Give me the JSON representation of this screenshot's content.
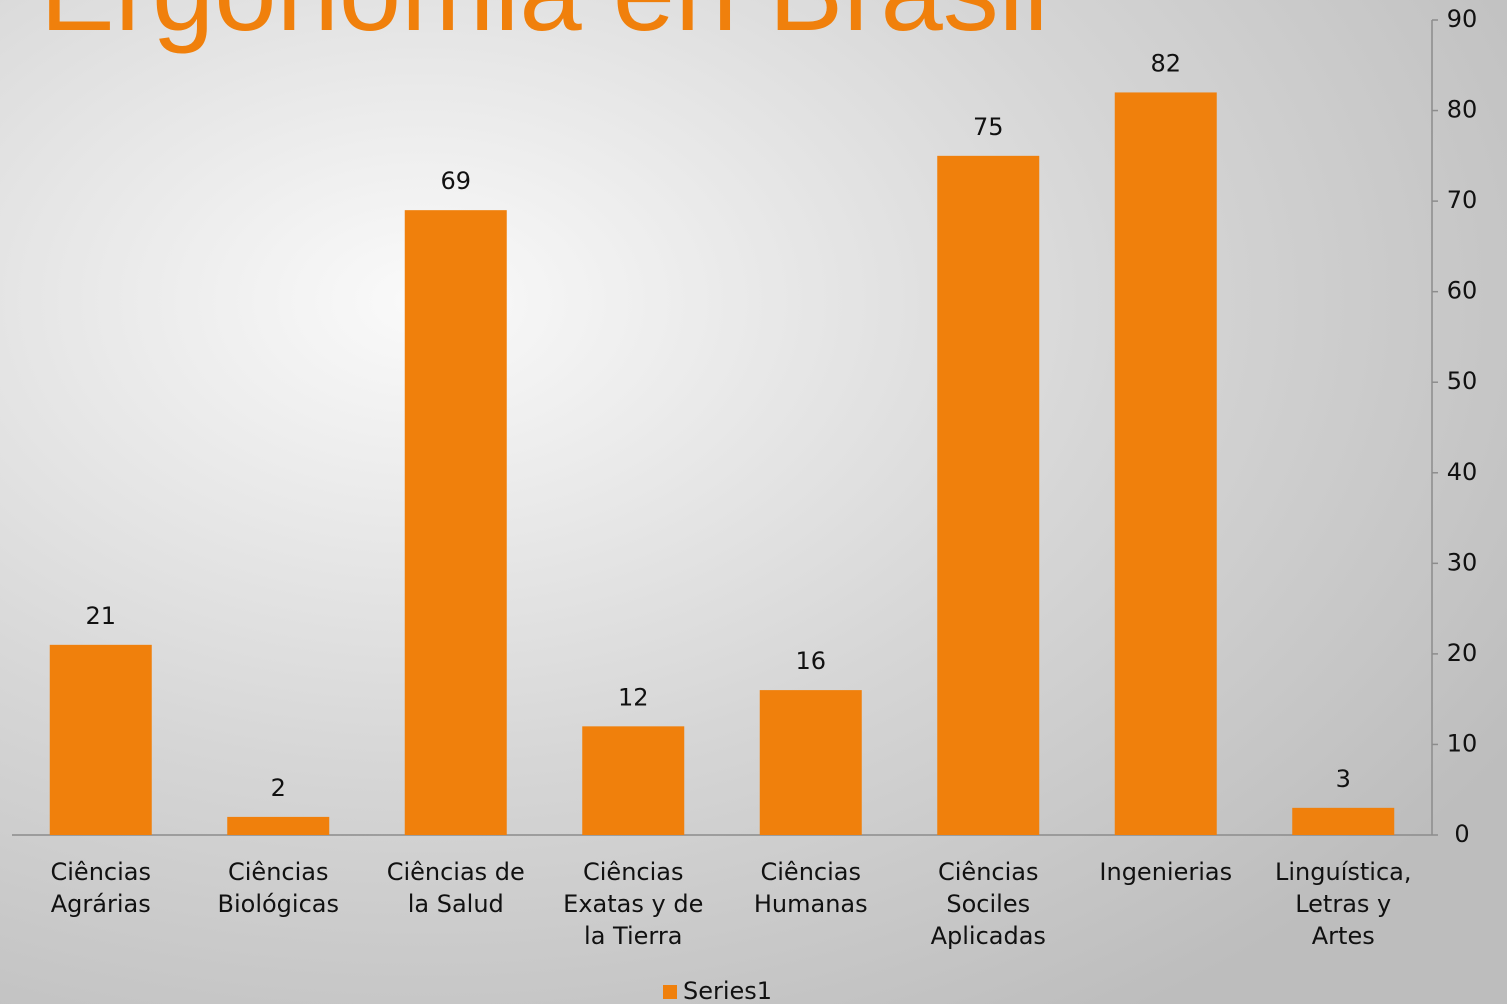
{
  "chart_data": {
    "type": "bar",
    "title": "Ergonomia en Brasil",
    "categories": [
      [
        "Ciências",
        "Agrárias"
      ],
      [
        "Ciências",
        "Biológicas"
      ],
      [
        "Ciências de",
        "la Salud"
      ],
      [
        "Ciências",
        "Exatas y de",
        "la Tierra"
      ],
      [
        "Ciências",
        "Humanas"
      ],
      [
        "Ciências",
        "Sociles",
        "Aplicadas"
      ],
      [
        "Ingenierias"
      ],
      [
        "Linguística,",
        "Letras y",
        "Artes"
      ]
    ],
    "series": [
      {
        "name": "Series1",
        "color": "#f0800c",
        "values": [
          21,
          2,
          69,
          12,
          16,
          75,
          82,
          3
        ]
      }
    ],
    "ylim": [
      0,
      90
    ],
    "yticks": [
      0,
      10,
      20,
      30,
      40,
      50,
      60,
      70,
      80,
      90
    ],
    "y_axis_side": "right",
    "legend": "bottom",
    "grid": false
  }
}
